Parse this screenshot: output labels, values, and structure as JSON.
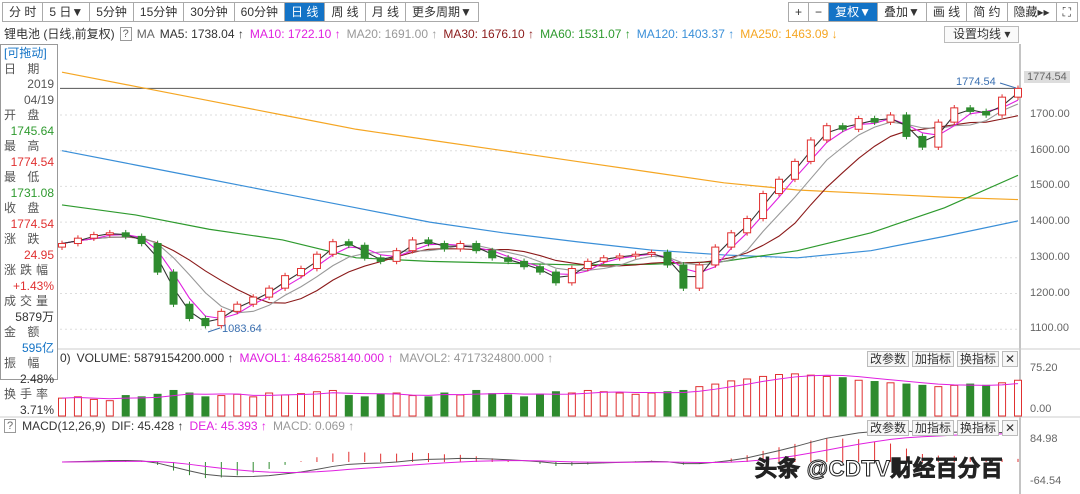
{
  "toolbar": {
    "periods": [
      "分 时",
      "5 日▼",
      "5分钟",
      "15分钟",
      "30分钟",
      "60分钟",
      "日 线",
      "周 线",
      "月 线",
      "更多周期▼"
    ],
    "active_period": 6,
    "right": [
      "+",
      "−",
      "复权▼",
      "叠加▼",
      "画 线",
      "简 约",
      "隐藏▸▸",
      "⛶"
    ],
    "active_right": 2
  },
  "legend": {
    "name": "锂电池 (日线,前复权)",
    "help": "?",
    "ma": "MA",
    "items": [
      {
        "label": "MA5: 1738.04 ↑",
        "color": "#333333"
      },
      {
        "label": "MA10: 1722.10 ↑",
        "color": "#e020e0"
      },
      {
        "label": "MA20: 1691.00 ↑",
        "color": "#999999"
      },
      {
        "label": "MA30: 1676.10 ↑",
        "color": "#8b1a1a"
      },
      {
        "label": "MA60: 1531.07 ↑",
        "color": "#2e9a2e"
      },
      {
        "label": "MA120: 1403.37 ↑",
        "color": "#3a8fd8"
      },
      {
        "label": "MA250: 1463.09 ↓",
        "color": "#f5a623"
      }
    ],
    "set_ma": "设置均线 ▾"
  },
  "info": {
    "draggable": "[可拖动]",
    "rows": [
      {
        "label": "日 期",
        "value": "2019",
        "value2": "04/19",
        "color": "#555"
      },
      {
        "label": "开 盘",
        "value": "1745.64",
        "color": "#2e9a2e"
      },
      {
        "label": "最 高",
        "value": "1774.54",
        "color": "#e03030"
      },
      {
        "label": "最 低",
        "value": "1731.08",
        "color": "#2e9a2e"
      },
      {
        "label": "收 盘",
        "value": "1774.54",
        "color": "#e03030"
      },
      {
        "label": "涨 跌",
        "value": "24.95",
        "color": "#e03030"
      },
      {
        "label": "涨跌幅",
        "value": "+1.43%",
        "color": "#e03030"
      },
      {
        "label": "成交量",
        "value": "5879万",
        "color": "#333"
      },
      {
        "label": "金 额",
        "value": "595亿",
        "color": "#1373c6"
      },
      {
        "label": "振 幅",
        "value": "2.48%",
        "color": "#333"
      },
      {
        "label": "换手率",
        "value": "3.71%",
        "color": "#333"
      }
    ]
  },
  "price_axis": {
    "labels": [
      "1700.00",
      "1600.00",
      "1500.00",
      "1400.00",
      "1300.00",
      "1200.00",
      "1100.00"
    ],
    "current": "1774.54"
  },
  "annotations": {
    "high": "1774.54",
    "low": "1083.64"
  },
  "volume": {
    "cut": "0)",
    "items": [
      {
        "label": "VOLUME: 5879154200.000 ↑",
        "color": "#333"
      },
      {
        "label": "MAVOL1: 4846258140.000 ↑",
        "color": "#e020e0"
      },
      {
        "label": "MAVOL2: 4717324800.000 ↑",
        "color": "#999"
      }
    ],
    "axis": [
      "75.20",
      "0.00"
    ]
  },
  "macd": {
    "help": "?",
    "items": [
      {
        "label": "MACD(12,26,9)",
        "color": "#333"
      },
      {
        "label": "DIF: 45.428 ↑",
        "color": "#333"
      },
      {
        "label": "DEA: 45.393 ↑",
        "color": "#e020e0"
      },
      {
        "label": "MACD: 0.069 ↑",
        "color": "#999"
      }
    ],
    "axis": [
      "84.98",
      "-64.54"
    ]
  },
  "panel_buttons": [
    "改参数",
    "加指标",
    "换指标",
    "✕"
  ],
  "watermark": "头条 @CDTV财经百分百",
  "chart_data": {
    "type": "candlestick",
    "ylim": [
      1060,
      1800
    ],
    "closes": [
      1340,
      1355,
      1365,
      1370,
      1360,
      1340,
      1260,
      1170,
      1130,
      1110,
      1150,
      1170,
      1190,
      1215,
      1250,
      1270,
      1310,
      1345,
      1335,
      1300,
      1290,
      1320,
      1350,
      1340,
      1325,
      1340,
      1320,
      1300,
      1290,
      1275,
      1260,
      1230,
      1270,
      1290,
      1300,
      1305,
      1310,
      1315,
      1280,
      1215,
      1280,
      1330,
      1370,
      1410,
      1480,
      1520,
      1570,
      1630,
      1670,
      1660,
      1690,
      1680,
      1700,
      1640,
      1610,
      1680,
      1720,
      1710,
      1700,
      1750,
      1774.54
    ],
    "ma250": [
      1820,
      1780,
      1740,
      1700,
      1660,
      1630,
      1600,
      1570,
      1540,
      1510,
      1490,
      1480,
      1470,
      1463.09
    ],
    "ma120": [
      1600,
      1560,
      1520,
      1480,
      1440,
      1400,
      1370,
      1345,
      1322,
      1308,
      1300,
      1320,
      1360,
      1403.37
    ],
    "ma60": [
      1448,
      1420,
      1380,
      1350,
      1300,
      1290,
      1285,
      1280,
      1282,
      1290,
      1320,
      1370,
      1440,
      1531.07
    ],
    "volume": [
      28,
      30,
      26,
      24,
      32,
      30,
      34,
      40,
      36,
      30,
      32,
      34,
      30,
      36,
      33,
      35,
      38,
      40,
      32,
      30,
      34,
      36,
      32,
      30,
      36,
      33,
      40,
      35,
      33,
      30,
      34,
      38,
      36,
      40,
      38,
      36,
      34,
      36,
      38,
      40,
      46,
      50,
      55,
      58,
      62,
      65,
      66,
      64,
      62,
      60,
      56,
      54,
      52,
      50,
      48,
      46,
      48,
      50,
      48,
      52,
      56
    ],
    "volume_ylim": [
      0,
      75.2
    ]
  }
}
